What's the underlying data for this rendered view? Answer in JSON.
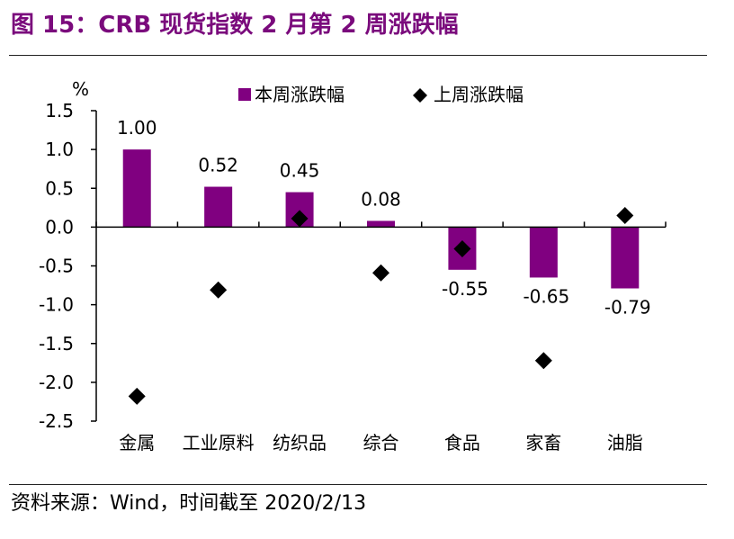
{
  "figure": {
    "title": "图 15：CRB 现货指数 2 月第 2 周涨跌幅",
    "source": "资料来源：Wind，时间截至 2020/2/13"
  },
  "colors": {
    "title": "#7a0a7c",
    "bar": "#800080",
    "marker": "#000000"
  },
  "chart_data": {
    "type": "bar",
    "ylabel": "%",
    "ylim": [
      -2.5,
      1.5
    ],
    "yticks": [
      1.5,
      1.0,
      0.5,
      0.0,
      -0.5,
      -1.0,
      -1.5,
      -2.0,
      -2.5
    ],
    "ytick_labels": [
      "1.5",
      "1.0",
      "0.5",
      "0.0",
      "-0.5",
      "-1.0",
      "-1.5",
      "-2.0",
      "-2.5"
    ],
    "grid": false,
    "legend_position": "top",
    "categories": [
      "金属",
      "工业原料",
      "纺织品",
      "综合",
      "食品",
      "家畜",
      "油脂"
    ],
    "series": [
      {
        "name": "本周涨跌幅",
        "kind": "bar",
        "values": [
          1.0,
          0.52,
          0.45,
          0.08,
          -0.55,
          -0.65,
          -0.79
        ],
        "labels": [
          "1.00",
          "0.52",
          "0.45",
          "0.08",
          "-0.55",
          "-0.65",
          "-0.79"
        ]
      },
      {
        "name": "上周涨跌幅",
        "kind": "scatter",
        "marker": "diamond",
        "values": [
          -2.18,
          -0.81,
          0.11,
          -0.59,
          -0.28,
          -1.72,
          0.15
        ]
      }
    ]
  }
}
